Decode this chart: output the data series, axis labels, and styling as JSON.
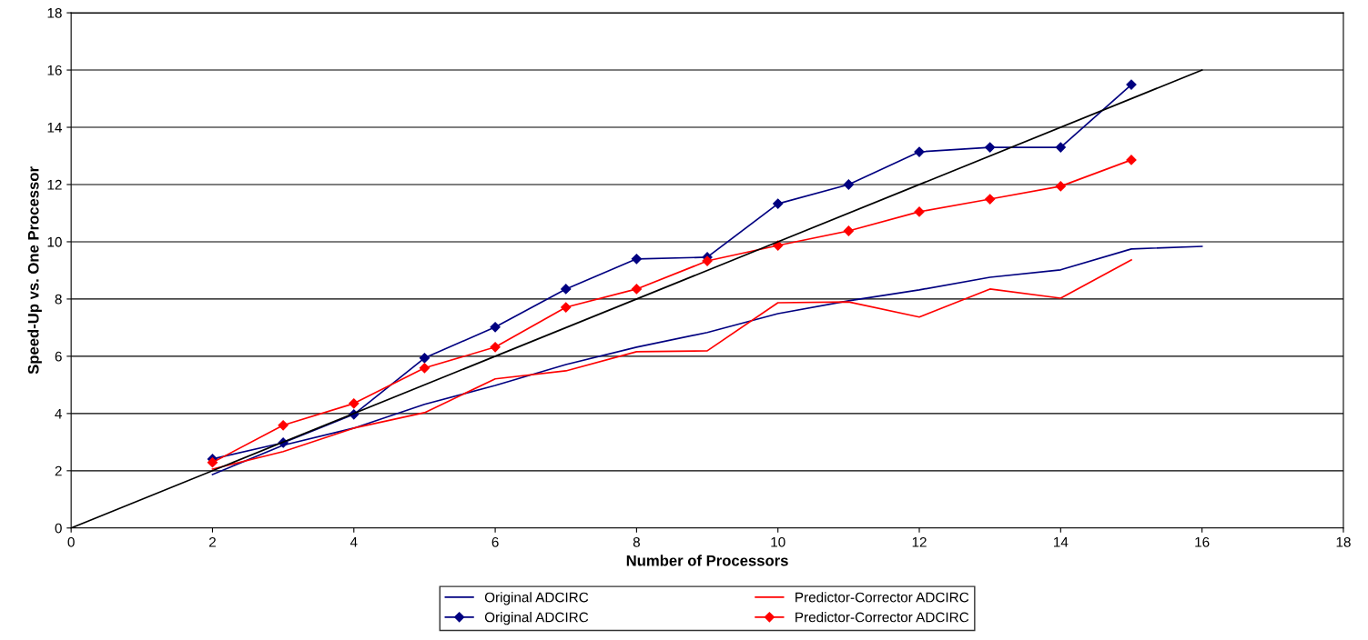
{
  "chart_data": {
    "type": "line",
    "xlabel": "Number of Processors",
    "ylabel": "Speed-Up vs. One Processor",
    "xlim": [
      0,
      18
    ],
    "ylim": [
      0,
      18
    ],
    "xticks": [
      0,
      2,
      4,
      6,
      8,
      10,
      12,
      14,
      16,
      18
    ],
    "yticks": [
      0,
      2,
      4,
      6,
      8,
      10,
      12,
      14,
      16,
      18
    ],
    "grid": "y",
    "legend": "bottom",
    "series": [
      {
        "name": "Original ADCIRC",
        "color": "#000080",
        "marker": "none",
        "x": [
          2,
          3,
          4,
          5,
          6,
          7,
          8,
          9,
          10,
          11,
          12,
          13,
          14,
          15,
          16
        ],
        "values": [
          1.87,
          2.89,
          3.49,
          4.32,
          4.98,
          5.71,
          6.32,
          6.83,
          7.49,
          7.94,
          8.32,
          8.76,
          9.02,
          9.75,
          9.84
        ]
      },
      {
        "name": "Original ADCIRC",
        "color": "#000080",
        "marker": "diamond",
        "x": [
          2,
          3,
          4,
          5,
          6,
          7,
          8,
          9,
          10,
          11,
          12,
          13,
          14,
          15
        ],
        "values": [
          2.41,
          2.98,
          3.97,
          5.94,
          7.02,
          8.35,
          9.4,
          9.46,
          11.33,
          12.0,
          13.14,
          13.3,
          13.3,
          15.49
        ]
      },
      {
        "name": "Predictor-Corrector ADCIRC",
        "color": "#ff0000",
        "marker": "none",
        "x": [
          2,
          3,
          4,
          5,
          6,
          7,
          8,
          9,
          10,
          11,
          12,
          13,
          14,
          15
        ],
        "values": [
          2.06,
          2.67,
          3.49,
          4.03,
          5.21,
          5.49,
          6.16,
          6.19,
          7.87,
          7.9,
          7.37,
          8.35,
          8.03,
          9.37
        ]
      },
      {
        "name": "Predictor-Corrector ADCIRC",
        "color": "#ff0000",
        "marker": "diamond",
        "x": [
          2,
          3,
          4,
          5,
          6,
          7,
          8,
          9,
          10,
          11,
          12,
          13,
          14,
          15
        ],
        "values": [
          2.29,
          3.59,
          4.35,
          5.59,
          6.32,
          7.71,
          8.35,
          9.33,
          9.87,
          10.38,
          11.05,
          11.49,
          11.94,
          12.86
        ]
      },
      {
        "color": "#000000",
        "marker": "none",
        "x": [
          0,
          16
        ],
        "values": [
          0,
          16
        ]
      }
    ]
  }
}
